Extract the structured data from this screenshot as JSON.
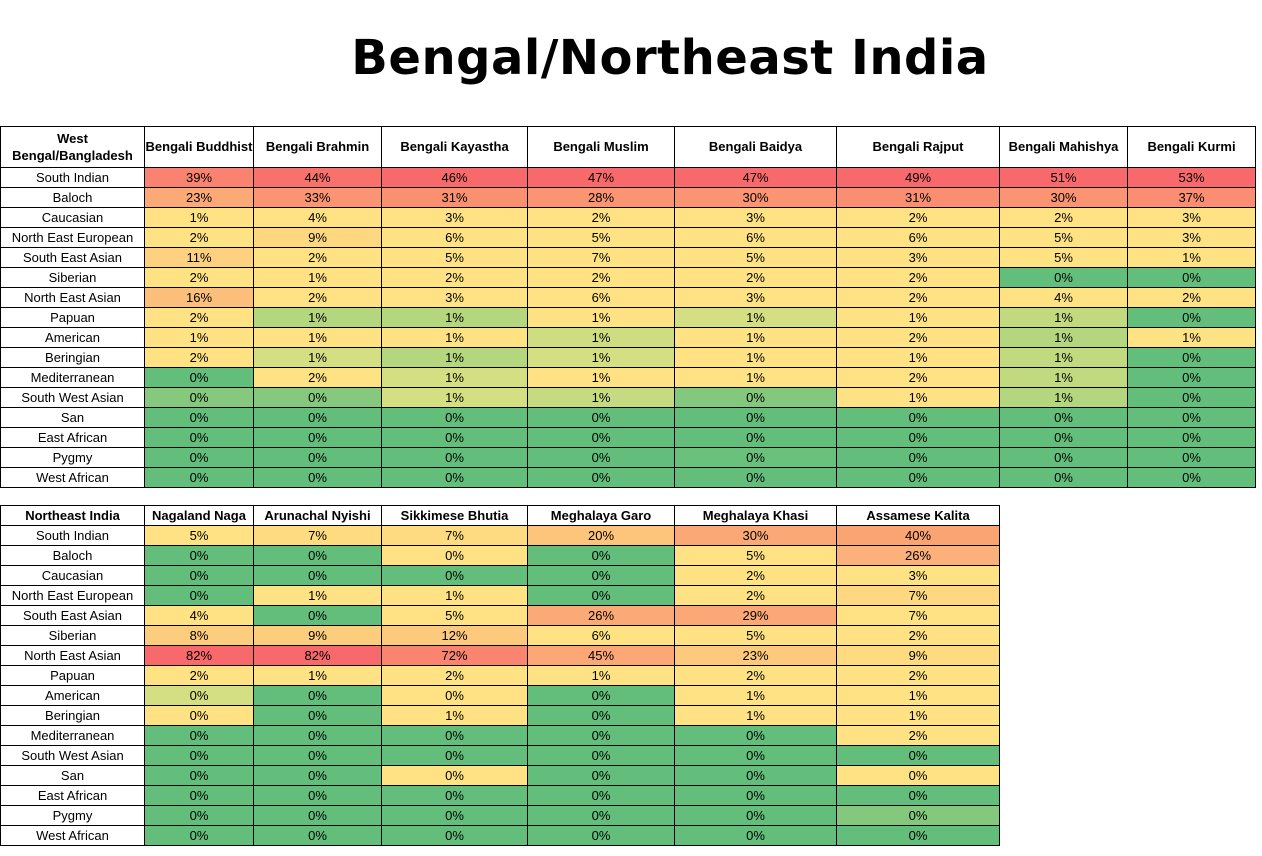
{
  "title": "Bengal/Northeast India",
  "chart_data": [
    {
      "type": "table",
      "title": "West Bengal/Bangladesh",
      "row_header": "West Bengal/Bangladesh",
      "columns": [
        "Bengali Buddhist",
        "Bengali Brahmin",
        "Bengali Kayastha",
        "Bengali Muslim",
        "Bengali Baidya",
        "Bengali Rajput",
        "Bengali Mahishya",
        "Bengali Kurmi"
      ],
      "rows": [
        {
          "label": "South Indian",
          "values": [
            39,
            44,
            46,
            47,
            47,
            49,
            51,
            53
          ]
        },
        {
          "label": "Baloch",
          "values": [
            23,
            33,
            31,
            28,
            30,
            31,
            30,
            37
          ]
        },
        {
          "label": "Caucasian",
          "values": [
            1,
            4,
            3,
            2,
            3,
            2,
            2,
            3
          ]
        },
        {
          "label": "North East European",
          "values": [
            2,
            9,
            6,
            5,
            6,
            6,
            5,
            3
          ]
        },
        {
          "label": "South East Asian",
          "values": [
            11,
            2,
            5,
            7,
            5,
            3,
            5,
            1
          ]
        },
        {
          "label": "Siberian",
          "values": [
            2,
            1,
            2,
            2,
            2,
            2,
            0,
            0
          ]
        },
        {
          "label": "North East Asian",
          "values": [
            16,
            2,
            3,
            6,
            3,
            2,
            4,
            2
          ]
        },
        {
          "label": "Papuan",
          "values": [
            2,
            1,
            1,
            1,
            1,
            1,
            1,
            0
          ]
        },
        {
          "label": "American",
          "values": [
            1,
            1,
            1,
            1,
            1,
            2,
            1,
            1
          ]
        },
        {
          "label": "Beringian",
          "values": [
            2,
            1,
            1,
            1,
            1,
            1,
            1,
            0
          ]
        },
        {
          "label": "Mediterranean",
          "values": [
            0,
            2,
            1,
            1,
            1,
            2,
            1,
            0
          ]
        },
        {
          "label": "South West Asian",
          "values": [
            0,
            0,
            1,
            1,
            0,
            1,
            1,
            0
          ]
        },
        {
          "label": "San",
          "values": [
            0,
            0,
            0,
            0,
            0,
            0,
            0,
            0
          ]
        },
        {
          "label": "East African",
          "values": [
            0,
            0,
            0,
            0,
            0,
            0,
            0,
            0
          ]
        },
        {
          "label": "Pygmy",
          "values": [
            0,
            0,
            0,
            0,
            0,
            0,
            0,
            0
          ]
        },
        {
          "label": "West African",
          "values": [
            0,
            0,
            0,
            0,
            0,
            0,
            0,
            0
          ]
        }
      ],
      "colors": [
        [
          "#f98370",
          "#f8716a",
          "#f8696b",
          "#f8696b",
          "#f8696b",
          "#f8696b",
          "#f8696b",
          "#f8696b"
        ],
        [
          "#fbaa77",
          "#fa9473",
          "#f9906f",
          "#fa9473",
          "#fa9473",
          "#f98f70",
          "#fa9473",
          "#fa8d72"
        ],
        [
          "#fee283",
          "#fee283",
          "#fee283",
          "#fee283",
          "#fee283",
          "#fee283",
          "#fee283",
          "#fee283"
        ],
        [
          "#fee283",
          "#fed880",
          "#fee283",
          "#fee283",
          "#fee283",
          "#fee283",
          "#fee283",
          "#fee283"
        ],
        [
          "#fdd17f",
          "#fee283",
          "#fee283",
          "#fee283",
          "#fee283",
          "#fee283",
          "#fee283",
          "#fee283"
        ],
        [
          "#fee283",
          "#fee283",
          "#fee283",
          "#fee283",
          "#fee283",
          "#fee283",
          "#63be7b",
          "#63be7b"
        ],
        [
          "#fcbf7b",
          "#fee283",
          "#fee283",
          "#fee283",
          "#fee283",
          "#fee283",
          "#fee283",
          "#fee283"
        ],
        [
          "#fee283",
          "#b3d67f",
          "#b3d67f",
          "#fee283",
          "#d3df82",
          "#fee283",
          "#c1da80",
          "#63be7b"
        ],
        [
          "#fee283",
          "#fee283",
          "#fee283",
          "#cfdd82",
          "#fee283",
          "#fee283",
          "#b3d67f",
          "#fee283"
        ],
        [
          "#fee283",
          "#d3df82",
          "#b3d67f",
          "#d3df82",
          "#fee283",
          "#fee283",
          "#c1da80",
          "#63be7b"
        ],
        [
          "#63be7b",
          "#fee283",
          "#d3df82",
          "#fee283",
          "#fee283",
          "#fee283",
          "#c1da80",
          "#63be7b"
        ],
        [
          "#86c97e",
          "#86c97e",
          "#d3df82",
          "#c6db81",
          "#84c87d",
          "#fee283",
          "#b3d67f",
          "#63be7b"
        ],
        [
          "#63be7b",
          "#63be7b",
          "#63be7b",
          "#63be7b",
          "#63be7b",
          "#63be7b",
          "#63be7b",
          "#63be7b"
        ],
        [
          "#63be7b",
          "#63be7b",
          "#63be7b",
          "#63be7b",
          "#63be7b",
          "#63be7b",
          "#63be7b",
          "#63be7b"
        ],
        [
          "#63be7b",
          "#63be7b",
          "#63be7b",
          "#63be7b",
          "#6ac17c",
          "#63be7b",
          "#63be7b",
          "#63be7b"
        ],
        [
          "#63be7b",
          "#63be7b",
          "#63be7b",
          "#63be7b",
          "#63be7b",
          "#63be7b",
          "#63be7b",
          "#63be7b"
        ]
      ]
    },
    {
      "type": "table",
      "title": "Northeast India",
      "row_header": "Northeast India",
      "columns": [
        "Nagaland Naga",
        "Arunachal Nyishi",
        "Sikkimese Bhutia",
        "Meghalaya Garo",
        "Meghalaya Khasi",
        "Assamese Kalita"
      ],
      "rows": [
        {
          "label": "South Indian",
          "values": [
            5,
            7,
            7,
            20,
            30,
            40
          ]
        },
        {
          "label": "Baloch",
          "values": [
            0,
            0,
            0,
            0,
            5,
            26
          ]
        },
        {
          "label": "Caucasian",
          "values": [
            0,
            0,
            0,
            0,
            2,
            3
          ]
        },
        {
          "label": "North East European",
          "values": [
            0,
            1,
            1,
            0,
            2,
            7
          ]
        },
        {
          "label": "South East Asian",
          "values": [
            4,
            0,
            5,
            26,
            29,
            7
          ]
        },
        {
          "label": "Siberian",
          "values": [
            8,
            9,
            12,
            6,
            5,
            2
          ]
        },
        {
          "label": "North East Asian",
          "values": [
            82,
            82,
            72,
            45,
            23,
            9
          ]
        },
        {
          "label": "Papuan",
          "values": [
            2,
            1,
            2,
            1,
            2,
            2
          ]
        },
        {
          "label": "American",
          "values": [
            0,
            0,
            0,
            0,
            1,
            1
          ]
        },
        {
          "label": "Beringian",
          "values": [
            0,
            0,
            1,
            0,
            1,
            1
          ]
        },
        {
          "label": "Mediterranean",
          "values": [
            0,
            0,
            0,
            0,
            0,
            2
          ]
        },
        {
          "label": "South West Asian",
          "values": [
            0,
            0,
            0,
            0,
            0,
            0
          ]
        },
        {
          "label": "San",
          "values": [
            0,
            0,
            0,
            0,
            0,
            0
          ]
        },
        {
          "label": "East African",
          "values": [
            0,
            0,
            0,
            0,
            0,
            0
          ]
        },
        {
          "label": "Pygmy",
          "values": [
            0,
            0,
            0,
            0,
            0,
            0
          ]
        },
        {
          "label": "West African",
          "values": [
            0,
            0,
            0,
            0,
            0,
            0
          ]
        }
      ],
      "colors": [
        [
          "#fee283",
          "#fedb81",
          "#fedb81",
          "#fdc47c",
          "#fba877",
          "#faa373"
        ],
        [
          "#63be7b",
          "#63be7b",
          "#fee283",
          "#63be7b",
          "#fee283",
          "#fbb179"
        ],
        [
          "#63be7b",
          "#63be7b",
          "#63be7b",
          "#63be7b",
          "#fee283",
          "#fee283"
        ],
        [
          "#63be7b",
          "#fee283",
          "#fee283",
          "#63be7b",
          "#fee283",
          "#fed880"
        ],
        [
          "#fee283",
          "#63be7b",
          "#fee283",
          "#fbaa77",
          "#fba876",
          "#fee283"
        ],
        [
          "#fdcd7e",
          "#fdcd7e",
          "#fdca7d",
          "#fee283",
          "#fee283",
          "#fee283"
        ],
        [
          "#f8696b",
          "#f8696b",
          "#f98570",
          "#fca776",
          "#fdca7d",
          "#fedb81"
        ],
        [
          "#fee283",
          "#fee283",
          "#fee283",
          "#fee283",
          "#fee283",
          "#fee283"
        ],
        [
          "#d3df82",
          "#63be7b",
          "#fee283",
          "#63be7b",
          "#fee283",
          "#fee283"
        ],
        [
          "#fee283",
          "#63be7b",
          "#fee283",
          "#63be7b",
          "#fee283",
          "#fee283"
        ],
        [
          "#63be7b",
          "#63be7b",
          "#63be7b",
          "#63be7b",
          "#63be7b",
          "#fee283"
        ],
        [
          "#63be7b",
          "#63be7b",
          "#63be7b",
          "#63be7b",
          "#63be7b",
          "#63be7b"
        ],
        [
          "#63be7b",
          "#63be7b",
          "#fee283",
          "#63be7b",
          "#63be7b",
          "#fee283"
        ],
        [
          "#63be7b",
          "#63be7b",
          "#63be7b",
          "#63be7b",
          "#63be7b",
          "#63be7b"
        ],
        [
          "#63be7b",
          "#63be7b",
          "#63be7b",
          "#63be7b",
          "#63be7b",
          "#84c87d"
        ],
        [
          "#63be7b",
          "#63be7b",
          "#63be7b",
          "#63be7b",
          "#63be7b",
          "#63be7b"
        ]
      ]
    }
  ]
}
